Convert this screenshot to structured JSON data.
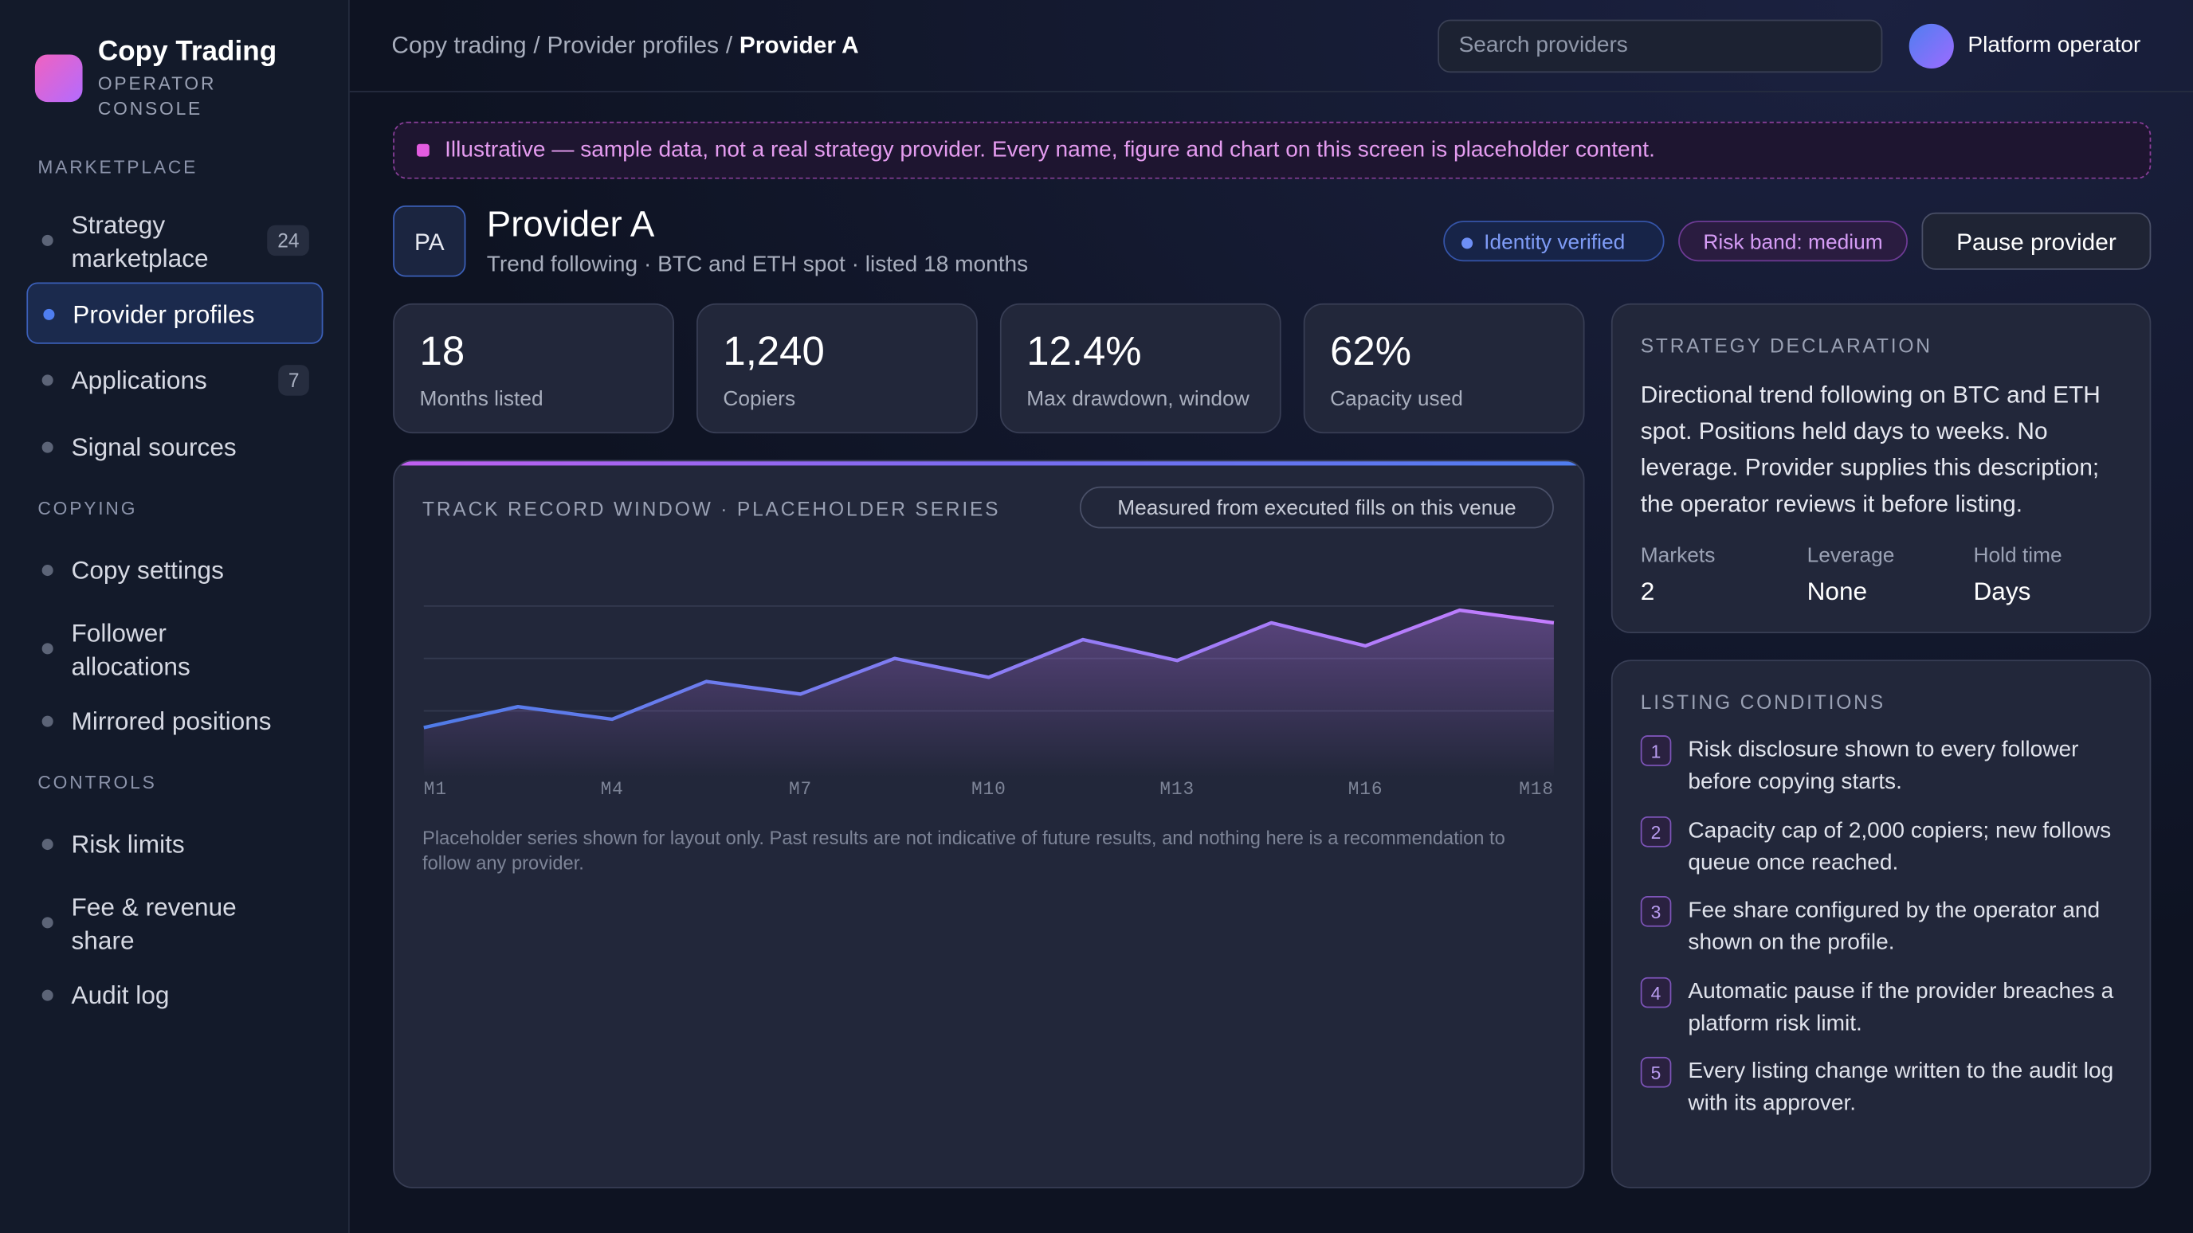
{
  "brand": {
    "title": "Copy Trading",
    "subtitle": "OPERATOR CONSOLE"
  },
  "nav": [
    {
      "heading": "MARKETPLACE",
      "items": [
        {
          "label": "Strategy marketplace",
          "badge": "24"
        },
        {
          "label": "Provider profiles",
          "active": true
        },
        {
          "label": "Applications",
          "badge": "7"
        },
        {
          "label": "Signal sources"
        }
      ]
    },
    {
      "heading": "COPYING",
      "items": [
        {
          "label": "Copy settings"
        },
        {
          "label": "Follower allocations"
        },
        {
          "label": "Mirrored positions"
        }
      ]
    },
    {
      "heading": "CONTROLS",
      "items": [
        {
          "label": "Risk limits"
        },
        {
          "label": "Fee & revenue share"
        },
        {
          "label": "Audit log"
        }
      ]
    }
  ],
  "breadcrumb": {
    "items": [
      "Copy trading",
      "Provider profiles",
      "Provider A"
    ],
    "separator": "/"
  },
  "search": {
    "placeholder": "Search providers"
  },
  "user": {
    "name": "Platform operator"
  },
  "notice": "Illustrative — sample data, not a real strategy provider. Every name, figure and chart on this screen is placeholder content.",
  "provider": {
    "initials": "PA",
    "name": "Provider A",
    "subtitle": "Trend following · BTC and ETH spot · listed 18 months",
    "badges": [
      "Identity verified",
      "Risk band: medium"
    ],
    "button": "Pause provider"
  },
  "stats": [
    {
      "value": "18",
      "label": "Months listed"
    },
    {
      "value": "1,240",
      "label": "Copiers"
    },
    {
      "value": "12.4%",
      "label": "Max drawdown, window"
    },
    {
      "value": "62%",
      "label": "Capacity used"
    }
  ],
  "chart_data": {
    "type": "line",
    "title": "TRACK RECORD WINDOW · PLACEHOLDER SERIES",
    "note": "Measured from executed fills on this venue",
    "x_labels": [
      "M1",
      "M4",
      "M7",
      "M10",
      "M13",
      "M16",
      "M18"
    ],
    "values": [
      17,
      27,
      21,
      39,
      33,
      50,
      41,
      59,
      49,
      67,
      56,
      73,
      67
    ],
    "ylim": [
      0,
      100
    ],
    "yticks": [
      25,
      50,
      75
    ],
    "grid": true,
    "colors": [
      "#4f7be8",
      "#c57dff"
    ],
    "caption": "Placeholder series shown for layout only. Past results are not indicative of future results, and nothing here is a recommendation to follow any provider."
  },
  "declaration": {
    "heading": "STRATEGY DECLARATION",
    "text": "Directional trend following on BTC and ETH spot. Positions held days to weeks. No leverage. Provider supplies this description; the operator reviews it before listing.",
    "facts": [
      {
        "label": "Markets",
        "value": "2"
      },
      {
        "label": "Leverage",
        "value": "None"
      },
      {
        "label": "Hold time",
        "value": "Days"
      }
    ]
  },
  "conditions": {
    "heading": "LISTING CONDITIONS",
    "items": [
      {
        "number": "1",
        "text": "Risk disclosure shown to every follower before copying starts."
      },
      {
        "number": "2",
        "text": "Capacity cap of 2,000 copiers; new follows queue once reached."
      },
      {
        "number": "3",
        "text": "Fee share configured by the operator and shown on the profile."
      },
      {
        "number": "4",
        "text": "Automatic pause if the provider breaches a platform risk limit."
      },
      {
        "number": "5",
        "text": "Every listing change written to the audit log with its approver."
      }
    ]
  }
}
